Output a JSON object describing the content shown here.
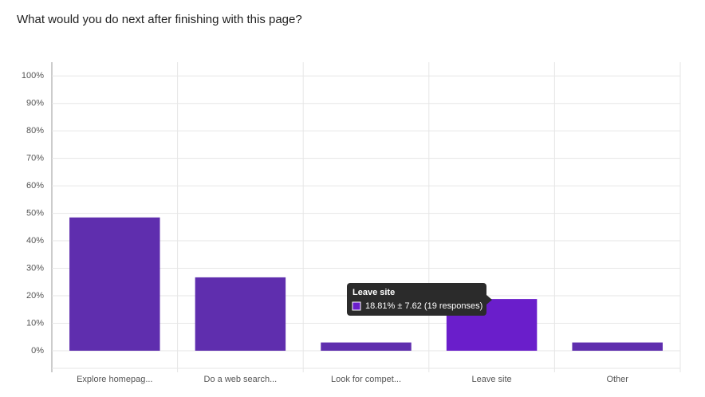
{
  "chart_data": {
    "type": "bar",
    "title": "What would you do next after finishing with this page?",
    "categories": [
      "Explore homepag...",
      "Do a web search...",
      "Look for compet...",
      "Leave site",
      "Other"
    ],
    "values": [
      48.5,
      26.7,
      3,
      18.81,
      3
    ],
    "colors": [
      "#5f2eae",
      "#5f2eae",
      "#5f2eae",
      "#6a1ecb",
      "#5f2eae"
    ],
    "ylim": [
      -6.4,
      105
    ],
    "yticks": [
      {
        "value": 0,
        "label": "0%"
      },
      {
        "value": 10,
        "label": "10%"
      },
      {
        "value": 20,
        "label": "20%"
      },
      {
        "value": 30,
        "label": "30%"
      },
      {
        "value": 40,
        "label": "40%"
      },
      {
        "value": 50,
        "label": "50%"
      },
      {
        "value": 60,
        "label": "60%"
      },
      {
        "value": 70,
        "label": "70%"
      },
      {
        "value": 80,
        "label": "80%"
      },
      {
        "value": 90,
        "label": "90%"
      },
      {
        "value": 100,
        "label": "100%"
      }
    ],
    "grid": true,
    "tooltip": {
      "title": "Leave site",
      "text": "18.81% ± 7.62 (19 responses)"
    }
  }
}
